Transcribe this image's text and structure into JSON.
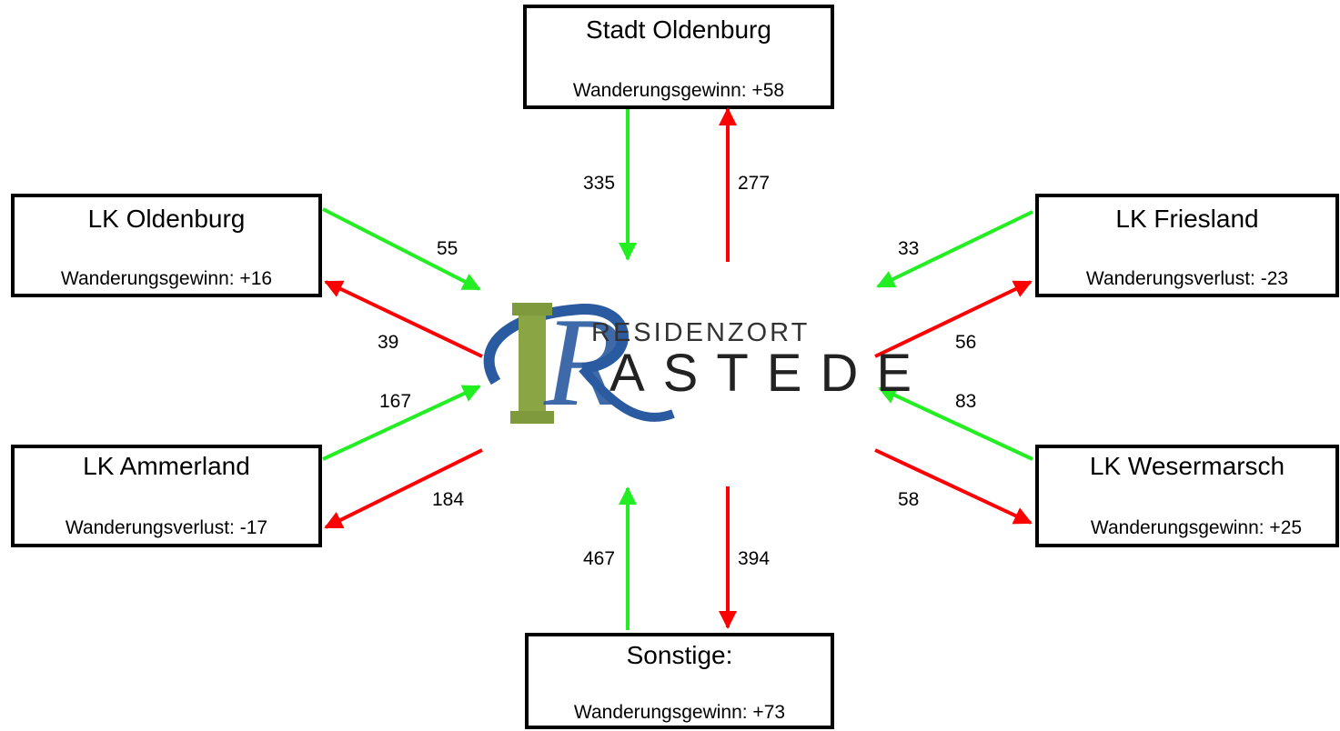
{
  "nodes": [
    {
      "name": "Stadt Oldenburg",
      "balance": "Wanderungsgewinn: +58"
    },
    {
      "name": "LK Oldenburg",
      "balance": "Wanderungsgewinn: +16"
    },
    {
      "name": "LK Friesland",
      "balance": "Wanderungsverlust: -23"
    },
    {
      "name": "LK Ammerland",
      "balance": "Wanderungsverlust: -17"
    },
    {
      "name": "LK Wesermarsch",
      "balance": "Wanderungsgewinn: +25"
    },
    {
      "name": "Sonstige:",
      "balance": "Wanderungsgewinn: +73"
    }
  ],
  "logo": {
    "line1": "RESIDENZORT",
    "initial": "R",
    "rest": "ASTEDE"
  },
  "flows": [
    {
      "inflow": 335,
      "outflow": 277
    },
    {
      "inflow": 55,
      "outflow": 39
    },
    {
      "inflow": 33,
      "outflow": 56
    },
    {
      "inflow": 167,
      "outflow": 184
    },
    {
      "inflow": 83,
      "outflow": 58
    },
    {
      "inflow": 467,
      "outflow": 394
    }
  ]
}
